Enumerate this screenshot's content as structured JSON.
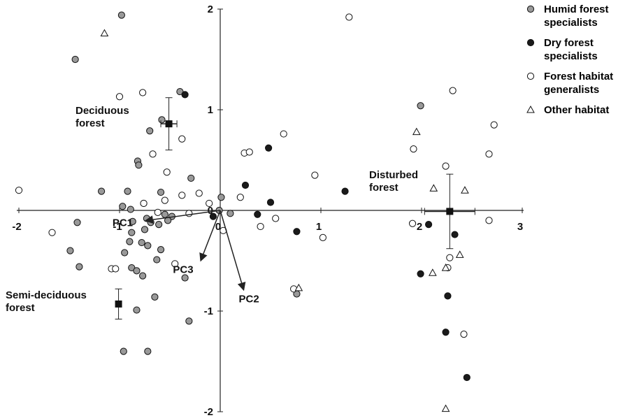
{
  "chart_data": {
    "type": "scatter",
    "xlim": [
      -2,
      3
    ],
    "ylim": [
      -2,
      2
    ],
    "xticks": [
      -2,
      -1,
      0,
      1,
      2,
      3
    ],
    "yticks": [
      -2,
      -1,
      0,
      1,
      2
    ],
    "series": [
      {
        "name": "Humid forest specialists",
        "color": "#999999",
        "marker": "circle",
        "x": [
          -0.98,
          -1.44,
          -0.4,
          -0.58,
          -0.7,
          1.99,
          -0.82,
          -0.81,
          -0.29,
          -1.18,
          -0.92,
          -0.59,
          -0.76,
          -0.97,
          -0.89,
          -0.55,
          -0.48,
          -0.52,
          -0.61,
          -0.69,
          -0.73,
          -1.42,
          -0.87,
          -0.75,
          -0.88,
          -0.9,
          -0.78,
          -0.72,
          -0.59,
          -1.49,
          -0.95,
          -0.63,
          -1.4,
          -0.88,
          -0.83,
          -0.77,
          -0.35,
          -0.65,
          -0.83,
          -0.31,
          -0.96,
          -0.72,
          0.01,
          -0.01,
          0.1,
          0.76
        ],
        "y": [
          1.94,
          1.5,
          1.18,
          0.9,
          0.79,
          1.04,
          0.49,
          0.45,
          0.32,
          0.19,
          0.19,
          0.18,
          0.07,
          0.04,
          0.01,
          -0.04,
          -0.06,
          -0.1,
          -0.14,
          -0.12,
          -0.08,
          -0.12,
          -0.11,
          -0.19,
          -0.22,
          -0.31,
          -0.32,
          -0.35,
          -0.39,
          -0.4,
          -0.42,
          -0.49,
          -0.56,
          -0.57,
          -0.6,
          -0.65,
          -0.67,
          -0.86,
          -0.99,
          -1.1,
          -1.4,
          -1.4,
          0.13,
          0.0,
          -0.03,
          -0.83
        ]
      },
      {
        "name": "Dry forest specialists",
        "color": "#1a1a1a",
        "marker": "circle",
        "x": [
          -0.35,
          0.48,
          0.25,
          0.5,
          -0.07,
          0.37,
          0.76,
          1.24,
          2.07,
          2.33,
          1.99,
          2.26,
          2.24,
          2.45
        ],
        "y": [
          1.15,
          0.62,
          0.25,
          0.08,
          -0.06,
          -0.04,
          -0.21,
          0.19,
          -0.14,
          -0.24,
          -0.63,
          -0.85,
          -1.21,
          -1.66
        ]
      },
      {
        "name": "Forest habitat generalists",
        "color": "#ffffff",
        "marker": "circle",
        "x": [
          1.28,
          -1.0,
          -0.77,
          -0.38,
          -0.67,
          -0.53,
          -2.0,
          -0.76,
          -0.55,
          -0.38,
          -0.21,
          -0.11,
          0.2,
          0.24,
          0.29,
          0.63,
          0.94,
          -0.31,
          -0.62,
          0.4,
          0.55,
          0.03,
          1.02,
          -1.67,
          -1.08,
          -1.04,
          -0.45,
          0.73,
          1.92,
          2.31,
          2.72,
          2.67,
          2.24,
          1.91,
          2.67,
          2.28,
          2.26,
          2.42
        ],
        "y": [
          1.92,
          1.13,
          1.17,
          0.71,
          0.56,
          0.38,
          0.2,
          0.07,
          0.1,
          0.15,
          0.17,
          0.07,
          0.13,
          0.57,
          0.58,
          0.76,
          0.35,
          -0.03,
          -0.02,
          -0.16,
          -0.08,
          -0.2,
          -0.27,
          -0.22,
          -0.58,
          -0.58,
          -0.53,
          -0.78,
          0.61,
          1.19,
          0.85,
          0.56,
          0.44,
          -0.13,
          -0.1,
          -0.47,
          -0.57,
          -1.23
        ]
      },
      {
        "name": "Other habitat",
        "color": "#ffffff",
        "marker": "triangle",
        "x": [
          -1.15,
          1.95,
          2.12,
          2.43,
          2.38,
          2.24,
          2.11,
          0.78,
          2.24
        ],
        "y": [
          1.76,
          0.78,
          0.22,
          0.2,
          -0.44,
          -0.57,
          -0.62,
          -0.77,
          -1.97
        ]
      }
    ],
    "sites": [
      {
        "label": "Deciduous forest",
        "x": -0.51,
        "y": 0.86,
        "xerr": 0.08,
        "yerr": 0.26
      },
      {
        "label": "Semi-deciduous forest",
        "x": -1.01,
        "y": -0.93,
        "xerr": 0.0,
        "yerr": 0.15
      },
      {
        "label": "Disturbed forest",
        "x": 2.28,
        "y": -0.01,
        "xerr": 0.25,
        "yerr": 0.37
      }
    ],
    "vectors": [
      {
        "label": "PC1",
        "x": -0.73,
        "y": -0.1
      },
      {
        "label": "PC2",
        "x": 0.23,
        "y": -0.78
      },
      {
        "label": "PC3",
        "x": -0.19,
        "y": -0.49
      }
    ]
  }
}
